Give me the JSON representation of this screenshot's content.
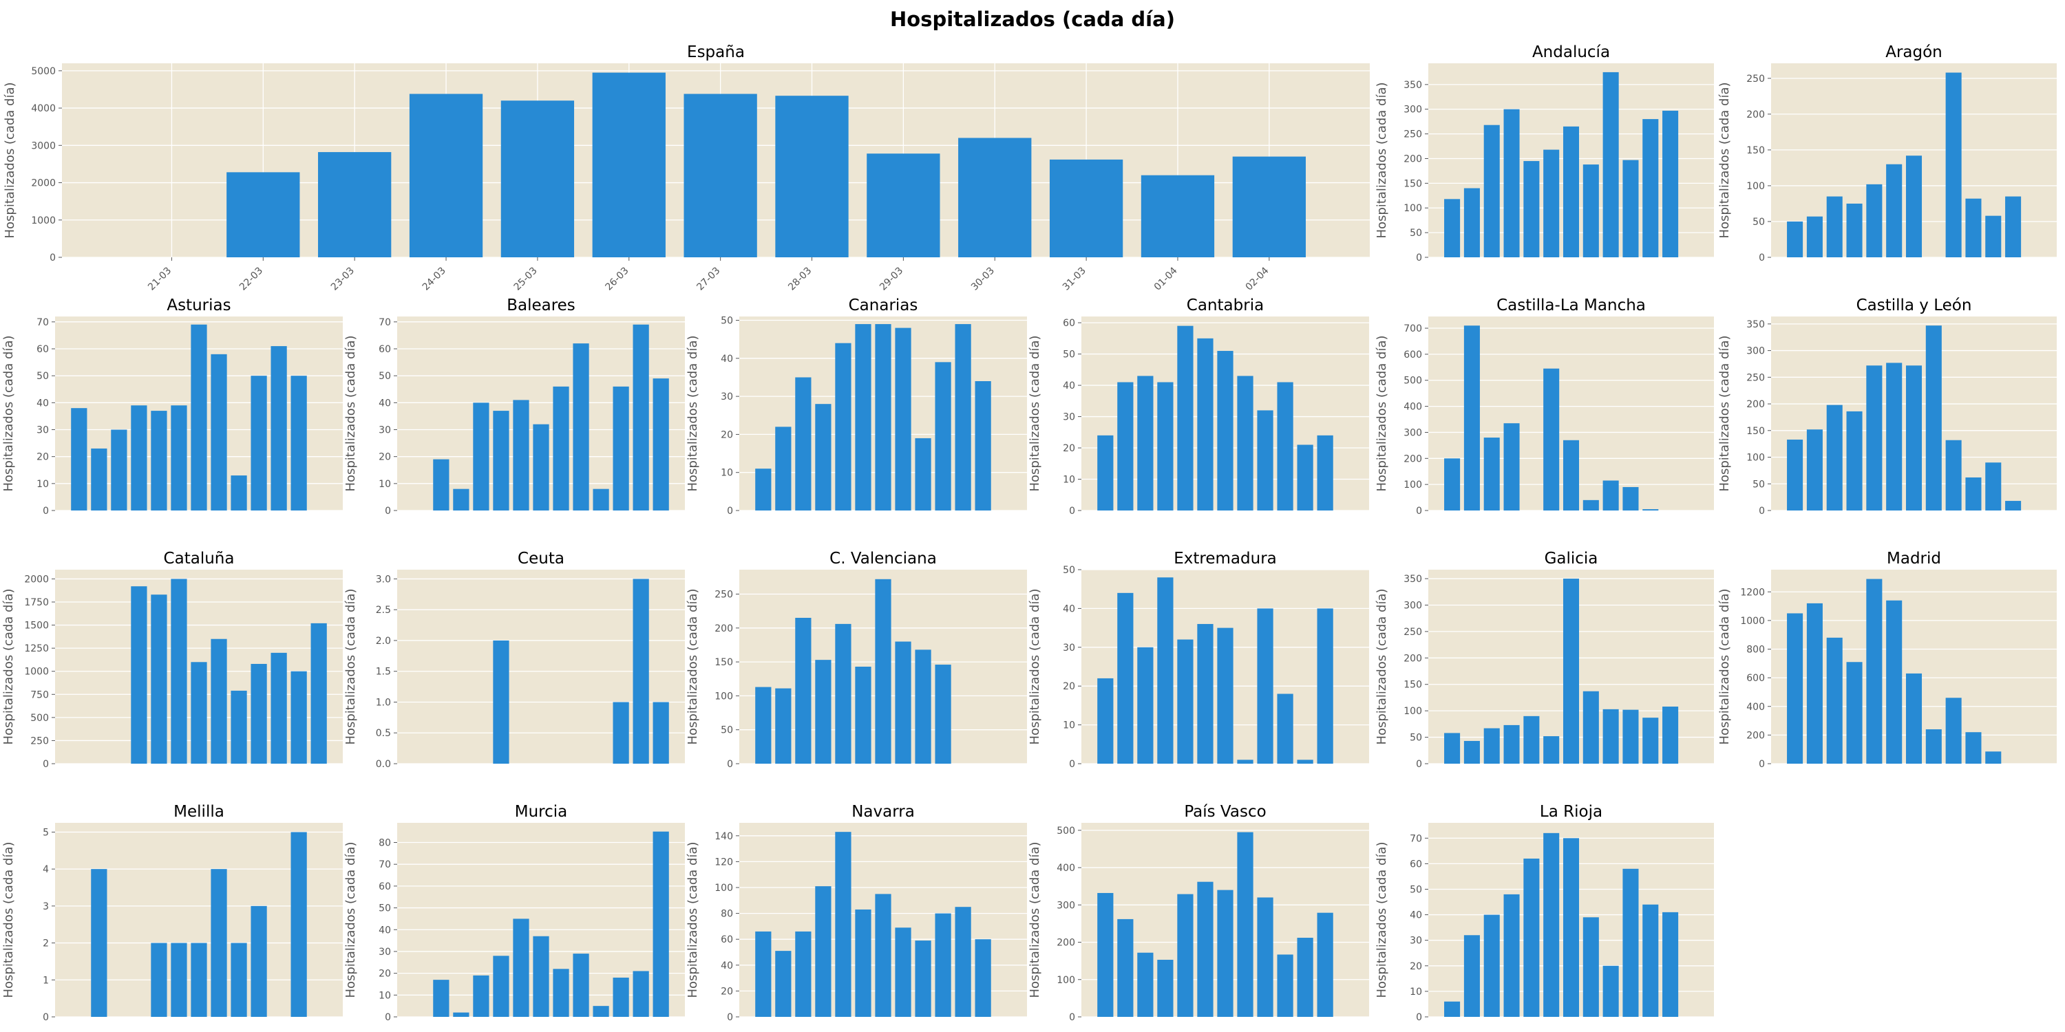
{
  "figure": {
    "title": "Hospitalizados (cada día)",
    "background": "#ffffff"
  },
  "style": {
    "panel_bg": "#ede6d4",
    "grid": "#ffffff",
    "bar_color": "#278ad4",
    "tick_color": "#555555"
  },
  "chart_data": [
    {
      "type": "bar",
      "title": "España",
      "ylabel": "Hospitalizados (cada día)",
      "categories": [
        "21-03",
        "22-03",
        "23-03",
        "24-03",
        "25-03",
        "26-03",
        "27-03",
        "28-03",
        "29-03",
        "30-03",
        "31-03",
        "01-04",
        "02-04"
      ],
      "values": [
        0,
        2280,
        2820,
        4380,
        4200,
        4950,
        4380,
        4330,
        2780,
        3200,
        2620,
        2200,
        2700
      ],
      "ylim": [
        0,
        5200
      ],
      "yticks": [
        0,
        1000,
        2000,
        3000,
        4000,
        5000
      ],
      "show_xticklabels": true,
      "grid": true
    },
    {
      "type": "bar",
      "title": "Andalucía",
      "ylabel": "Hospitalizados (cada día)",
      "values": [
        118,
        140,
        268,
        300,
        195,
        218,
        265,
        188,
        375,
        197,
        280,
        297
      ],
      "ylim": [
        0,
        393
      ],
      "yticks": [
        0,
        50,
        100,
        150,
        200,
        250,
        300,
        350
      ],
      "grid": true
    },
    {
      "type": "bar",
      "title": "Aragón",
      "ylabel": "Hospitalizados (cada día)",
      "values": [
        50,
        57,
        85,
        75,
        102,
        130,
        142,
        0,
        258,
        82,
        58,
        85
      ],
      "ylim": [
        0,
        271
      ],
      "yticks": [
        0,
        50,
        100,
        150,
        200,
        250
      ],
      "grid": true
    },
    {
      "type": "bar",
      "title": "Asturias",
      "ylabel": "Hospitalizados (cada día)",
      "values": [
        38,
        23,
        30,
        39,
        37,
        39,
        69,
        58,
        13,
        50,
        61,
        50
      ],
      "ylim": [
        0,
        72
      ],
      "yticks": [
        0,
        10,
        20,
        30,
        40,
        50,
        60,
        70
      ],
      "grid": true
    },
    {
      "type": "bar",
      "title": "Baleares",
      "ylabel": "Hospitalizados (cada día)",
      "values": [
        0,
        19,
        8,
        40,
        37,
        41,
        32,
        46,
        62,
        8,
        46,
        69,
        49
      ],
      "ylim": [
        0,
        72
      ],
      "yticks": [
        0,
        10,
        20,
        30,
        40,
        50,
        60,
        70
      ],
      "grid": true
    },
    {
      "type": "bar",
      "title": "Canarias",
      "ylabel": "Hospitalizados (cada día)",
      "values": [
        11,
        22,
        35,
        28,
        44,
        49,
        49,
        48,
        19,
        39,
        49,
        34
      ],
      "ylim": [
        0,
        51
      ],
      "yticks": [
        0,
        10,
        20,
        30,
        40,
        50
      ],
      "grid": true
    },
    {
      "type": "bar",
      "title": "Cantabria",
      "ylabel": "Hospitalizados (cada día)",
      "values": [
        24,
        41,
        43,
        41,
        59,
        55,
        51,
        43,
        32,
        41,
        21,
        24
      ],
      "ylim": [
        0,
        62
      ],
      "yticks": [
        0,
        10,
        20,
        30,
        40,
        50,
        60
      ],
      "grid": true
    },
    {
      "type": "bar",
      "title": "Castilla-La Mancha",
      "ylabel": "Hospitalizados (cada día)",
      "values": [
        200,
        710,
        280,
        335,
        0,
        545,
        270,
        40,
        115,
        90,
        5
      ],
      "ylim": [
        0,
        745
      ],
      "yticks": [
        0,
        100,
        200,
        300,
        400,
        500,
        600,
        700
      ],
      "grid": true
    },
    {
      "type": "bar",
      "title": "Castilla y León",
      "ylabel": "Hospitalizados (cada día)",
      "values": [
        133,
        152,
        198,
        186,
        272,
        277,
        272,
        347,
        132,
        62,
        90,
        18
      ],
      "ylim": [
        0,
        364
      ],
      "yticks": [
        0,
        50,
        100,
        150,
        200,
        250,
        300,
        350
      ],
      "grid": true
    },
    {
      "type": "bar",
      "title": "Cataluña",
      "ylabel": "Hospitalizados (cada día)",
      "values": [
        0,
        0,
        0,
        1920,
        1830,
        2000,
        1100,
        1350,
        790,
        1080,
        1200,
        1000,
        1520
      ],
      "ylim": [
        0,
        2100
      ],
      "yticks": [
        0,
        250,
        500,
        750,
        1000,
        1250,
        1500,
        1750,
        2000
      ],
      "grid": true
    },
    {
      "type": "bar",
      "title": "Ceuta",
      "ylabel": "Hospitalizados (cada día)",
      "values": [
        0,
        0,
        0,
        0,
        2,
        0,
        0,
        0,
        0,
        0,
        1,
        3,
        1
      ],
      "ylim": [
        0,
        3.15
      ],
      "yticks": [
        0.0,
        0.5,
        1.0,
        1.5,
        2.0,
        2.5,
        3.0
      ],
      "ytick_labels": [
        "0.0",
        "0.5",
        "1.0",
        "1.5",
        "2.0",
        "2.5",
        "3.0"
      ],
      "grid": true
    },
    {
      "type": "bar",
      "title": "C. Valenciana",
      "ylabel": "Hospitalizados (cada día)",
      "values": [
        113,
        111,
        215,
        153,
        206,
        143,
        272,
        180,
        168,
        146
      ],
      "ylim": [
        0,
        286
      ],
      "yticks": [
        0,
        50,
        100,
        150,
        200,
        250
      ],
      "grid": true
    },
    {
      "type": "bar",
      "title": "Extremadura",
      "ylabel": "Hospitalizados (cada día)",
      "values": [
        22,
        44,
        30,
        48,
        32,
        36,
        35,
        1,
        40,
        18,
        1,
        40
      ],
      "ylim": [
        0,
        50
      ],
      "yticks": [
        0,
        10,
        20,
        30,
        40,
        50
      ],
      "grid": true
    },
    {
      "type": "bar",
      "title": "Galicia",
      "ylabel": "Hospitalizados (cada día)",
      "values": [
        58,
        43,
        67,
        73,
        90,
        52,
        350,
        137,
        103,
        102,
        87,
        108
      ],
      "ylim": [
        0,
        367
      ],
      "yticks": [
        0,
        50,
        100,
        150,
        200,
        250,
        300,
        350
      ],
      "grid": true
    },
    {
      "type": "bar",
      "title": "Madrid",
      "ylabel": "Hospitalizados (cada día)",
      "values": [
        1050,
        1120,
        880,
        710,
        1290,
        1140,
        630,
        240,
        460,
        220,
        85
      ],
      "ylim": [
        0,
        1355
      ],
      "yticks": [
        0,
        200,
        400,
        600,
        800,
        1000,
        1200
      ],
      "grid": true
    },
    {
      "type": "bar",
      "title": "Melilla",
      "ylabel": "Hospitalizados (cada día)",
      "values": [
        0,
        4,
        0,
        0,
        2,
        2,
        2,
        4,
        2,
        3,
        0,
        5,
        0
      ],
      "ylim": [
        0,
        5.25
      ],
      "yticks": [
        0,
        1,
        2,
        3,
        4,
        5
      ],
      "grid": true
    },
    {
      "type": "bar",
      "title": "Murcia",
      "ylabel": "Hospitalizados (cada día)",
      "values": [
        0,
        17,
        2,
        19,
        28,
        45,
        37,
        22,
        29,
        5,
        18,
        21,
        85
      ],
      "ylim": [
        0,
        89
      ],
      "yticks": [
        0,
        10,
        20,
        30,
        40,
        50,
        60,
        70,
        80
      ],
      "grid": true
    },
    {
      "type": "bar",
      "title": "Navarra",
      "ylabel": "Hospitalizados (cada día)",
      "values": [
        66,
        51,
        66,
        101,
        143,
        83,
        95,
        69,
        59,
        80,
        85,
        60
      ],
      "ylim": [
        0,
        150
      ],
      "yticks": [
        0,
        20,
        40,
        60,
        80,
        100,
        120,
        140
      ],
      "grid": true
    },
    {
      "type": "bar",
      "title": "País Vasco",
      "ylabel": "Hospitalizados (cada día)",
      "values": [
        332,
        262,
        172,
        153,
        329,
        362,
        340,
        495,
        320,
        167,
        212,
        279
      ],
      "ylim": [
        0,
        520
      ],
      "yticks": [
        0,
        100,
        200,
        300,
        400,
        500
      ],
      "grid": true
    },
    {
      "type": "bar",
      "title": "La Rioja",
      "ylabel": "Hospitalizados (cada día)",
      "values": [
        6,
        32,
        40,
        48,
        62,
        72,
        70,
        39,
        20,
        58,
        44,
        41
      ],
      "ylim": [
        0,
        76
      ],
      "yticks": [
        0,
        10,
        20,
        30,
        40,
        50,
        60,
        70
      ],
      "grid": true
    }
  ]
}
